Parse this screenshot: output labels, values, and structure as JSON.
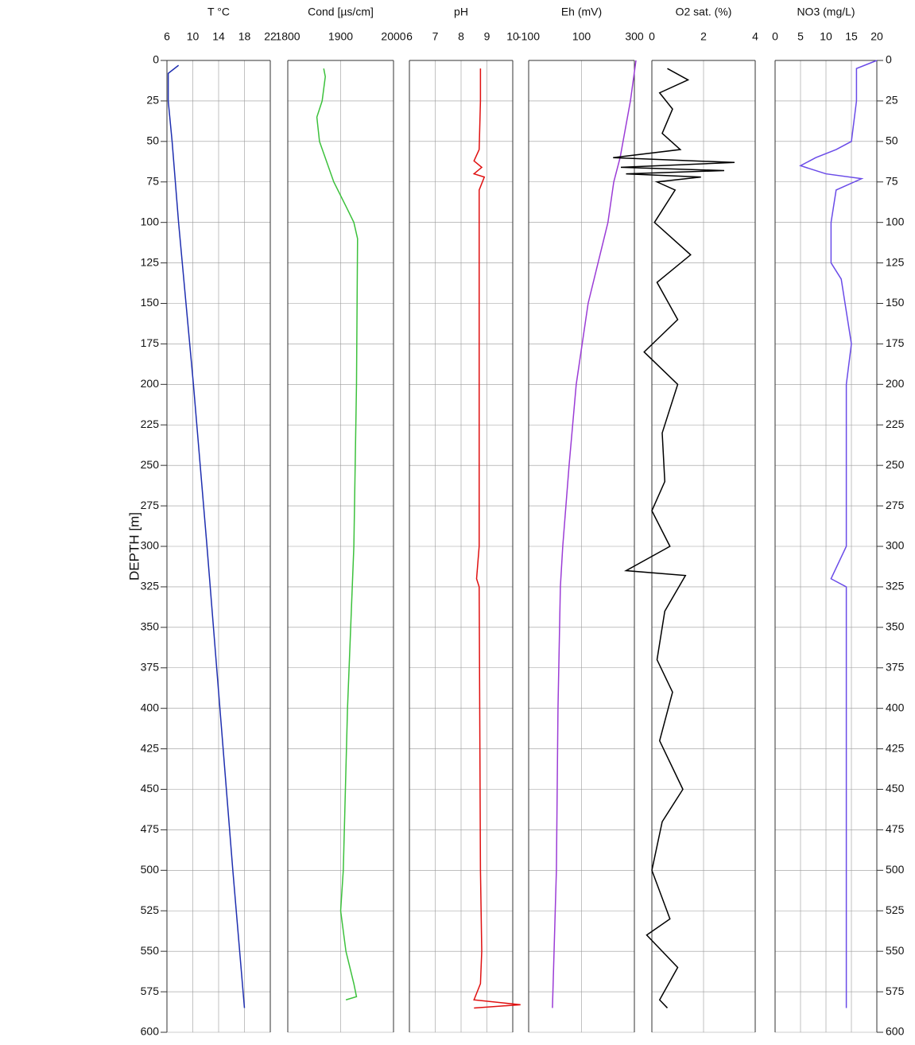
{
  "chart_data": [
    {
      "type": "line",
      "title": "T °C",
      "y_label": "DEPTH  [m]",
      "color": "#1f2fb0",
      "xlim": [
        6,
        22
      ],
      "xticks": [
        6,
        10,
        14,
        18,
        22
      ],
      "ylim": [
        600,
        0
      ],
      "yticks": [
        0,
        25,
        50,
        75,
        100,
        125,
        150,
        175,
        200,
        225,
        250,
        275,
        300,
        325,
        350,
        375,
        400,
        425,
        450,
        475,
        500,
        525,
        550,
        575,
        600
      ],
      "y": [
        3,
        8,
        25,
        50,
        100,
        200,
        300,
        400,
        500,
        585
      ],
      "x": [
        7.8,
        6.2,
        6.2,
        6.8,
        7.8,
        10.1,
        12.2,
        14.2,
        16.2,
        18.0
      ]
    },
    {
      "type": "line",
      "title": "Cond [µs/cm]",
      "color": "#3cc13c",
      "xlim": [
        1800,
        2000
      ],
      "xticks": [
        1800,
        1900,
        2000
      ],
      "y": [
        5,
        10,
        25,
        35,
        50,
        75,
        90,
        100,
        110,
        200,
        300,
        400,
        500,
        525,
        550,
        570,
        578,
        580
      ],
      "x": [
        1868,
        1871,
        1865,
        1855,
        1860,
        1887,
        1910,
        1925,
        1932,
        1930,
        1925,
        1913,
        1905,
        1900,
        1910,
        1925,
        1930,
        1910
      ]
    },
    {
      "type": "line",
      "title": "pH",
      "color": "#e01010",
      "xlim": [
        6,
        10
      ],
      "xticks": [
        6,
        7,
        8,
        9,
        10
      ],
      "y": [
        5,
        25,
        55,
        62,
        66,
        70,
        72,
        80,
        150,
        300,
        320,
        325,
        500,
        550,
        570,
        580,
        583,
        585
      ],
      "x": [
        8.75,
        8.75,
        8.7,
        8.5,
        8.8,
        8.5,
        8.9,
        8.7,
        8.7,
        8.7,
        8.6,
        8.7,
        8.75,
        8.8,
        8.75,
        8.5,
        10.3,
        8.5
      ]
    },
    {
      "type": "line",
      "title": "Eh (mV)",
      "color": "#9b3cd6",
      "xlim": [
        -100,
        300
      ],
      "xticks": [
        -100,
        100,
        300
      ],
      "y": [
        0,
        25,
        60,
        75,
        100,
        150,
        200,
        250,
        300,
        325,
        400,
        500,
        585
      ],
      "x": [
        306,
        285,
        246,
        222,
        200,
        125,
        80,
        53,
        29,
        20,
        11,
        5,
        -10
      ]
    },
    {
      "type": "line",
      "title": "O2 sat.  (%)",
      "color": "#000000",
      "xlim": [
        0,
        4
      ],
      "xticks": [
        0,
        2,
        4
      ],
      "y": [
        5,
        12,
        20,
        30,
        45,
        55,
        60,
        63,
        66,
        68,
        70,
        72,
        75,
        80,
        100,
        120,
        137,
        160,
        180,
        200,
        230,
        260,
        278,
        300,
        315,
        318,
        340,
        370,
        390,
        420,
        450,
        470,
        500,
        530,
        540,
        560,
        580,
        585
      ],
      "x": [
        0.6,
        1.4,
        0.3,
        0.8,
        0.4,
        1.1,
        -1.5,
        3.2,
        -1.2,
        2.8,
        -1.0,
        1.9,
        0.2,
        0.9,
        0.1,
        1.5,
        0.2,
        1.0,
        -0.3,
        1.0,
        0.4,
        0.5,
        0.0,
        0.7,
        -1.0,
        1.3,
        0.5,
        0.2,
        0.8,
        0.3,
        1.2,
        0.4,
        0.0,
        0.7,
        -0.2,
        1.0,
        0.3,
        0.6
      ]
    },
    {
      "type": "line",
      "title": "NO3  (mg/L)",
      "color": "#6a4be8",
      "xlim": [
        0,
        20
      ],
      "xticks": [
        0,
        5,
        10,
        15,
        20
      ],
      "yticks": [
        0,
        25,
        50,
        75,
        100,
        125,
        150,
        175,
        200,
        225,
        250,
        275,
        300,
        325,
        350,
        375,
        400,
        425,
        450,
        475,
        500,
        525,
        550,
        575,
        600
      ],
      "y": [
        0,
        5,
        25,
        50,
        55,
        60,
        65,
        70,
        73,
        80,
        100,
        125,
        135,
        175,
        200,
        300,
        320,
        325,
        585
      ],
      "x": [
        20,
        16,
        16,
        15,
        12,
        8,
        5,
        10,
        17,
        12,
        11,
        11,
        13,
        15,
        14,
        14,
        11,
        14,
        14
      ]
    }
  ]
}
